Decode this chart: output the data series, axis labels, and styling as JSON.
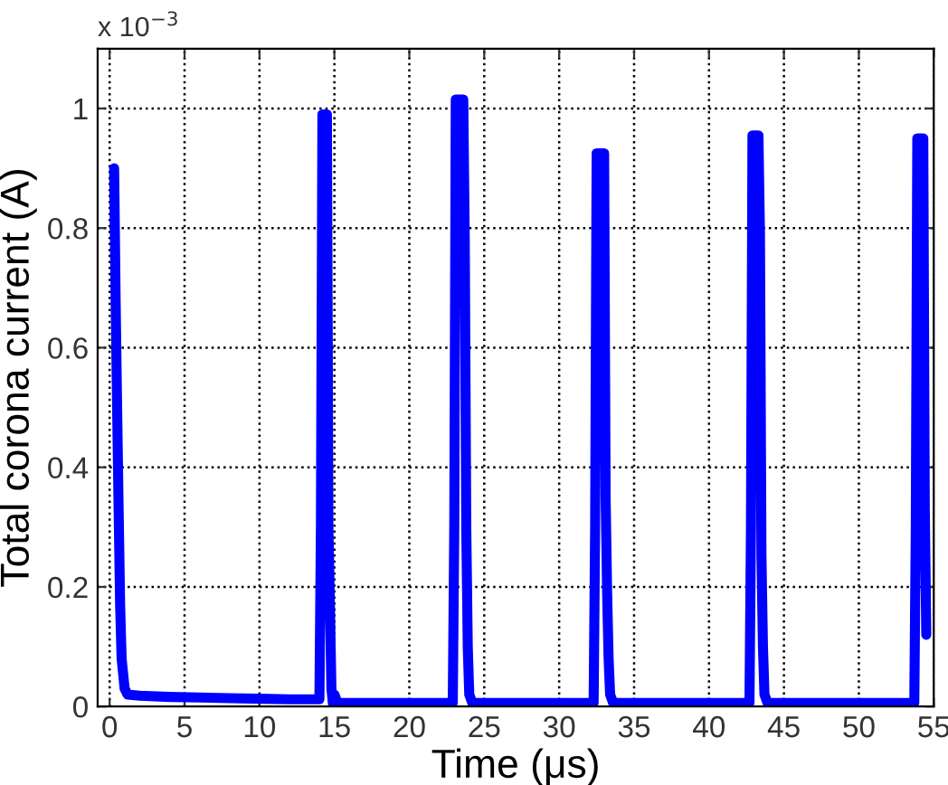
{
  "chart_data": {
    "type": "line",
    "xlabel": "Time (μs)",
    "ylabel": "Total corona current (A)",
    "annotations": [
      "x 10$^{−3}$"
    ],
    "xlim": [
      -0.8,
      55
    ],
    "ylim": [
      0,
      1.1
    ],
    "xticks": [
      0,
      5,
      10,
      15,
      20,
      25,
      30,
      35,
      40,
      45,
      50,
      55
    ],
    "yticks": [
      0,
      0.2,
      0.4,
      0.6,
      0.8,
      1
    ],
    "grid": true,
    "marker": "none",
    "line_style": "solid",
    "series": [
      {
        "color": "#0000ff",
        "x": [
          0.3,
          0.4,
          0.5,
          0.6,
          0.7,
          0.8,
          1.0,
          1.2,
          2,
          4,
          6,
          8,
          10,
          12,
          14.0,
          14.1,
          14.2,
          14.5,
          14.6,
          14.7,
          14.8,
          14.9,
          15.0,
          15.2,
          18,
          20,
          22.9,
          23.0,
          23.1,
          23.6,
          23.7,
          23.8,
          23.9,
          24.0,
          24.2,
          27,
          30,
          32.3,
          32.4,
          32.5,
          33.0,
          33.1,
          33.2,
          33.3,
          33.4,
          33.6,
          36,
          40,
          42.7,
          42.8,
          42.9,
          43.3,
          43.4,
          43.5,
          43.6,
          43.7,
          43.9,
          47,
          50,
          53.7,
          53.8,
          53.9,
          54.3,
          54.4,
          54.5
        ],
        "values": [
          0.9,
          0.68,
          0.5,
          0.33,
          0.17,
          0.08,
          0.03,
          0.02,
          0.018,
          0.016,
          0.015,
          0.014,
          0.013,
          0.012,
          0.012,
          0.3,
          0.99,
          0.99,
          0.3,
          0.17,
          0.03,
          0.005,
          0.02,
          0.006,
          0.006,
          0.006,
          0.006,
          0.3,
          1.015,
          1.015,
          0.78,
          0.3,
          0.1,
          0.02,
          0.006,
          0.006,
          0.006,
          0.006,
          0.3,
          0.925,
          0.925,
          0.35,
          0.19,
          0.08,
          0.02,
          0.006,
          0.006,
          0.006,
          0.006,
          0.3,
          0.955,
          0.955,
          0.79,
          0.25,
          0.1,
          0.02,
          0.006,
          0.006,
          0.006,
          0.006,
          0.3,
          0.95,
          0.95,
          0.33,
          0.12
        ]
      }
    ]
  }
}
